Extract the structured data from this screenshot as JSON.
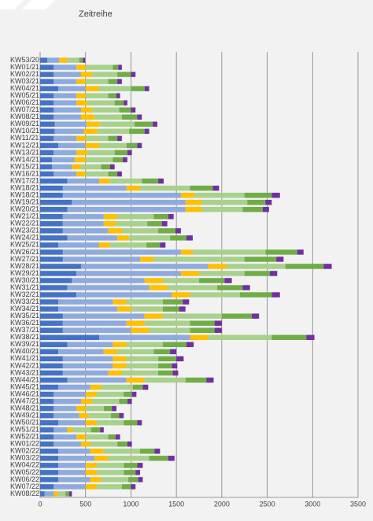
{
  "chart_data": {
    "type": "stacked-bar-horizontal",
    "title": "Zeitreihe",
    "categories": [
      "KW53/20",
      "KW01/21",
      "KW02/21",
      "KW03/21",
      "KW04/21",
      "KW05/21",
      "KW06/21",
      "KW07/21",
      "KW08/21",
      "KW09/21",
      "KW10/21",
      "KW11/21",
      "KW12/21",
      "KW13/21",
      "KW14/21",
      "KW15/21",
      "KW16/21",
      "KW17/21",
      "KW18/21",
      "KW18/21",
      "KW19/21",
      "KW20/21",
      "KW21/21",
      "KW22/21",
      "KW23/21",
      "KW24/21",
      "KW25/21",
      "KW26/21",
      "KW27/21",
      "KW28/21",
      "KW29/21",
      "KW30/21",
      "KW31/21",
      "KW32/21",
      "KW33/21",
      "KW34/21",
      "KW35/21",
      "KW36/21",
      "KW37/21",
      "KW38/21",
      "KW39/21",
      "KW40/21",
      "KW41/21",
      "KW42/21",
      "KW43/21",
      "KW44/21",
      "KW45/21",
      "KW46/21",
      "KW47/21",
      "KW48/21",
      "KW49/21",
      "KW50/21",
      "KW51/21",
      "KW52/21",
      "KW01/22",
      "KW02/22",
      "KW03/22",
      "KW04/22",
      "KW05/22",
      "KW06/22",
      "KW07/22",
      "KW08/22"
    ],
    "series": [
      {
        "color": "#4472c4",
        "values": [
          80,
          150,
          150,
          150,
          200,
          150,
          150,
          150,
          150,
          160,
          160,
          150,
          200,
          150,
          130,
          130,
          150,
          300,
          250,
          250,
          350,
          300,
          250,
          250,
          250,
          300,
          200,
          250,
          250,
          450,
          400,
          350,
          300,
          400,
          200,
          200,
          250,
          250,
          250,
          650,
          300,
          200,
          250,
          250,
          250,
          300,
          200,
          150,
          150,
          150,
          150,
          200,
          150,
          150,
          150,
          200,
          200,
          200,
          200,
          200,
          150,
          50
        ]
      },
      {
        "color": "#8faadc",
        "values": [
          130,
          250,
          300,
          250,
          300,
          250,
          250,
          300,
          300,
          350,
          320,
          250,
          300,
          250,
          250,
          220,
          250,
          350,
          700,
          1300,
          1250,
          1300,
          450,
          450,
          500,
          550,
          450,
          1300,
          850,
          1400,
          1150,
          800,
          900,
          1050,
          600,
          650,
          900,
          700,
          750,
          1000,
          500,
          500,
          550,
          550,
          500,
          650,
          350,
          350,
          300,
          250,
          280,
          300,
          150,
          250,
          300,
          350,
          400,
          300,
          300,
          350,
          350,
          100
        ]
      },
      {
        "color": "#ffc000",
        "values": [
          90,
          100,
          120,
          100,
          150,
          100,
          120,
          120,
          150,
          150,
          150,
          100,
          150,
          120,
          120,
          100,
          100,
          120,
          150,
          150,
          180,
          180,
          150,
          130,
          150,
          130,
          120,
          130,
          150,
          200,
          200,
          200,
          200,
          200,
          150,
          150,
          200,
          200,
          200,
          200,
          150,
          150,
          150,
          150,
          150,
          200,
          120,
          120,
          120,
          100,
          100,
          120,
          60,
          100,
          100,
          150,
          150,
          120,
          120,
          120,
          120,
          50
        ]
      },
      {
        "color": "#a9d18e",
        "values": [
          130,
          300,
          280,
          250,
          350,
          250,
          300,
          300,
          300,
          380,
          350,
          250,
          300,
          300,
          300,
          220,
          250,
          350,
          550,
          550,
          500,
          450,
          400,
          350,
          400,
          450,
          400,
          800,
          1000,
          650,
          500,
          400,
          550,
          550,
          400,
          350,
          650,
          500,
          450,
          700,
          400,
          400,
          350,
          350,
          400,
          450,
          350,
          300,
          300,
          200,
          250,
          300,
          200,
          250,
          300,
          400,
          450,
          300,
          300,
          300,
          280,
          80
        ]
      },
      {
        "color": "#70ad47",
        "values": [
          40,
          60,
          150,
          100,
          150,
          90,
          100,
          130,
          170,
          200,
          170,
          100,
          120,
          140,
          110,
          100,
          100,
          180,
          250,
          300,
          200,
          220,
          160,
          160,
          190,
          180,
          150,
          350,
          350,
          420,
          280,
          280,
          280,
          350,
          220,
          180,
          330,
          270,
          270,
          380,
          260,
          180,
          200,
          150,
          160,
          230,
          110,
          90,
          90,
          90,
          90,
          150,
          100,
          80,
          110,
          160,
          210,
          150,
          130,
          110,
          100,
          40
        ]
      },
      {
        "color": "#7030a0",
        "values": [
          25,
          40,
          50,
          50,
          50,
          40,
          40,
          50,
          50,
          50,
          50,
          50,
          50,
          50,
          50,
          50,
          50,
          60,
          70,
          90,
          70,
          70,
          60,
          60,
          60,
          70,
          60,
          70,
          80,
          90,
          80,
          80,
          80,
          90,
          70,
          70,
          80,
          80,
          80,
          90,
          80,
          70,
          80,
          60,
          60,
          80,
          60,
          50,
          50,
          50,
          50,
          50,
          40,
          50,
          50,
          60,
          70,
          60,
          50,
          50,
          50,
          30
        ]
      }
    ],
    "xlim": [
      0,
      3500
    ],
    "xticks": [
      0,
      500,
      1000,
      1500,
      2000,
      2500,
      3000,
      3500
    ],
    "grid": true
  }
}
